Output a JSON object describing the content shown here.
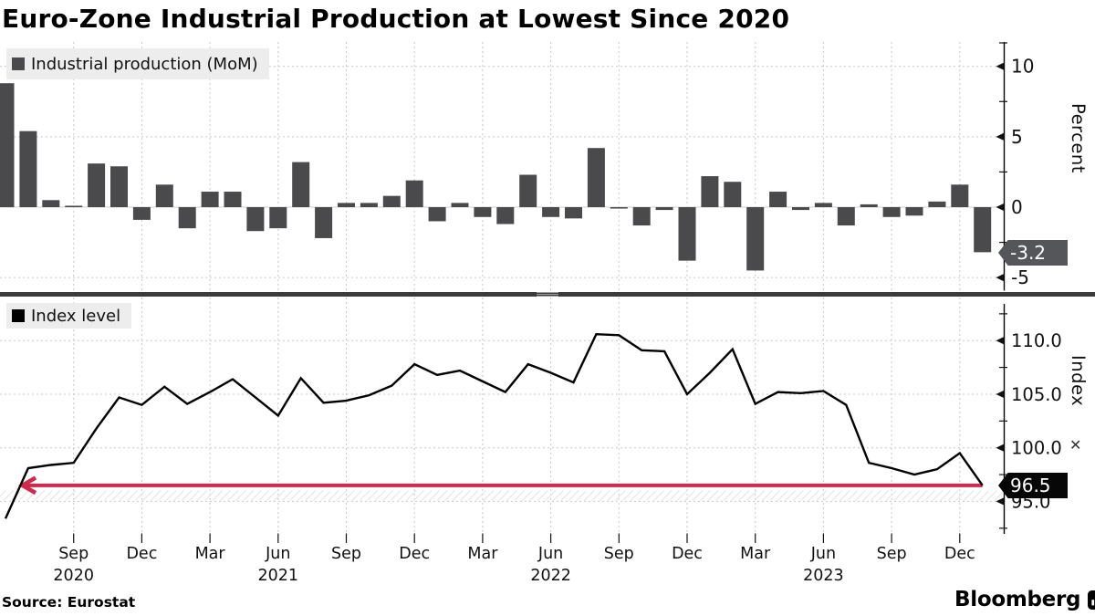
{
  "title": "Euro-Zone Industrial Production at Lowest Since 2020",
  "source": "Source: Eurostat",
  "brand": "Bloomberg",
  "colors": {
    "bar": "#4a4a4c",
    "line": "#000000",
    "red": "#d0294e",
    "grid": "#c9c9c9",
    "zero-grid": "#d2d2d2",
    "hatch": "#e4e4e4",
    "divider": "#3b3b3b",
    "legend-bg": "#ededed",
    "badge-top": "#55565a",
    "badge-bottom": "#070707",
    "text": "#111111"
  },
  "panels": {
    "top": {
      "legend": "Industrial production (MoM)",
      "axis_label": "Percent",
      "badge": "-3.2",
      "ticks": [
        {
          "label": "10",
          "value": 10
        },
        {
          "label": "5",
          "value": 5
        },
        {
          "label": "0",
          "value": 0
        },
        {
          "label": "-5",
          "value": -5
        }
      ],
      "minor_ticks": [
        7.5,
        2.5,
        -2.5
      ],
      "grid_values": [
        10,
        5,
        0,
        -5
      ]
    },
    "bottom": {
      "legend": "Index level",
      "axis_label": "Index",
      "badge": "96.5",
      "ticks": [
        {
          "label": "110.0",
          "value": 110
        },
        {
          "label": "105.0",
          "value": 105
        },
        {
          "label": "100.0",
          "value": 100
        },
        {
          "label": "95.0",
          "value": 95
        }
      ],
      "minor_ticks": [
        112.5,
        107.5,
        102.5,
        97.5,
        92.5
      ],
      "grid_values": [
        110,
        105,
        100,
        95
      ]
    }
  },
  "x_axis": {
    "labels": [
      "Sep",
      "Dec",
      "Mar",
      "Jun",
      "Sep",
      "Dec",
      "Mar",
      "Jun",
      "Sep",
      "Dec",
      "Mar",
      "Jun",
      "Sep",
      "Dec"
    ],
    "month_indices": [
      3,
      6,
      9,
      12,
      15,
      18,
      21,
      24,
      27,
      30,
      33,
      36,
      39,
      42
    ],
    "years": [
      {
        "label": "2020",
        "month_index": 3
      },
      {
        "label": "2021",
        "month_index": 12
      },
      {
        "label": "2022",
        "month_index": 24
      },
      {
        "label": "2023",
        "month_index": 36
      }
    ]
  },
  "chart_data": [
    {
      "type": "bar",
      "name": "Industrial production (MoM)",
      "ylabel": "Percent",
      "x_start": "Jun 2020",
      "x_end": "Jan 2024",
      "freq": "monthly",
      "ylim": [
        -5.9,
        11.7
      ],
      "yticks": [
        10,
        5,
        0,
        -5
      ],
      "grid": true,
      "values": [
        8.8,
        5.4,
        0.5,
        0.1,
        3.1,
        2.9,
        -0.9,
        1.6,
        -1.5,
        1.1,
        1.1,
        -1.7,
        -1.5,
        3.2,
        -2.2,
        0.3,
        0.3,
        0.8,
        1.9,
        -1.0,
        0.3,
        -0.7,
        -1.2,
        2.3,
        -0.7,
        -0.8,
        4.2,
        -0.1,
        -1.3,
        -0.2,
        -3.8,
        2.2,
        1.8,
        -4.5,
        1.1,
        -0.2,
        0.3,
        -1.3,
        0.2,
        -0.7,
        -0.6,
        0.4,
        1.6,
        -3.2
      ],
      "last_value_label": "-3.2"
    },
    {
      "type": "line",
      "name": "Index level",
      "ylabel": "Index",
      "x_start": "Jun 2020",
      "x_end": "Jan 2024",
      "freq": "monthly",
      "ylim": [
        91.9,
        113.4
      ],
      "yticks": [
        110,
        105,
        100,
        95
      ],
      "grid": true,
      "values": [
        93.4,
        98.1,
        98.4,
        98.6,
        101.8,
        104.7,
        104.0,
        105.7,
        104.1,
        105.2,
        106.4,
        104.7,
        103.0,
        106.5,
        104.2,
        104.4,
        104.9,
        105.8,
        107.8,
        106.8,
        107.2,
        106.2,
        105.2,
        107.8,
        107.0,
        106.1,
        110.6,
        110.5,
        109.1,
        109.0,
        105.0,
        107.0,
        109.2,
        104.1,
        105.2,
        105.1,
        105.3,
        104.0,
        98.6,
        98.1,
        97.5,
        98.0,
        99.5,
        96.5
      ],
      "last_value_label": "96.5",
      "ref_line": {
        "value": 96.5,
        "style": "red-left-arrow"
      }
    }
  ]
}
